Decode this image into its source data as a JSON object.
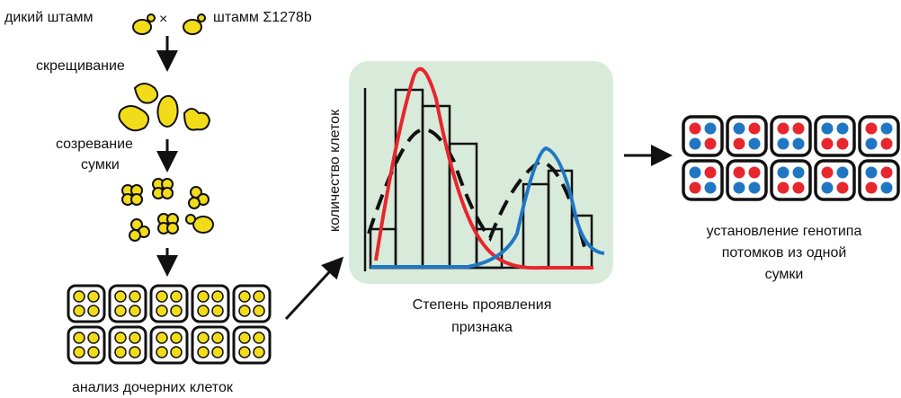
{
  "left": {
    "wild_strain": "дикий штамм",
    "cross_symbol": "×",
    "mutant_strain": "штамм Σ1278b",
    "mating": "скрещивание",
    "maturation": [
      "созревание",
      "сумки"
    ],
    "analysis": "анализ дочерних клеток"
  },
  "middle": {
    "y_label": "количество клеток",
    "x_label": [
      "Степень проявления",
      "признака"
    ]
  },
  "right": {
    "caption": [
      "установление генотипа",
      "потомков из одной",
      "сумки"
    ]
  }
}
